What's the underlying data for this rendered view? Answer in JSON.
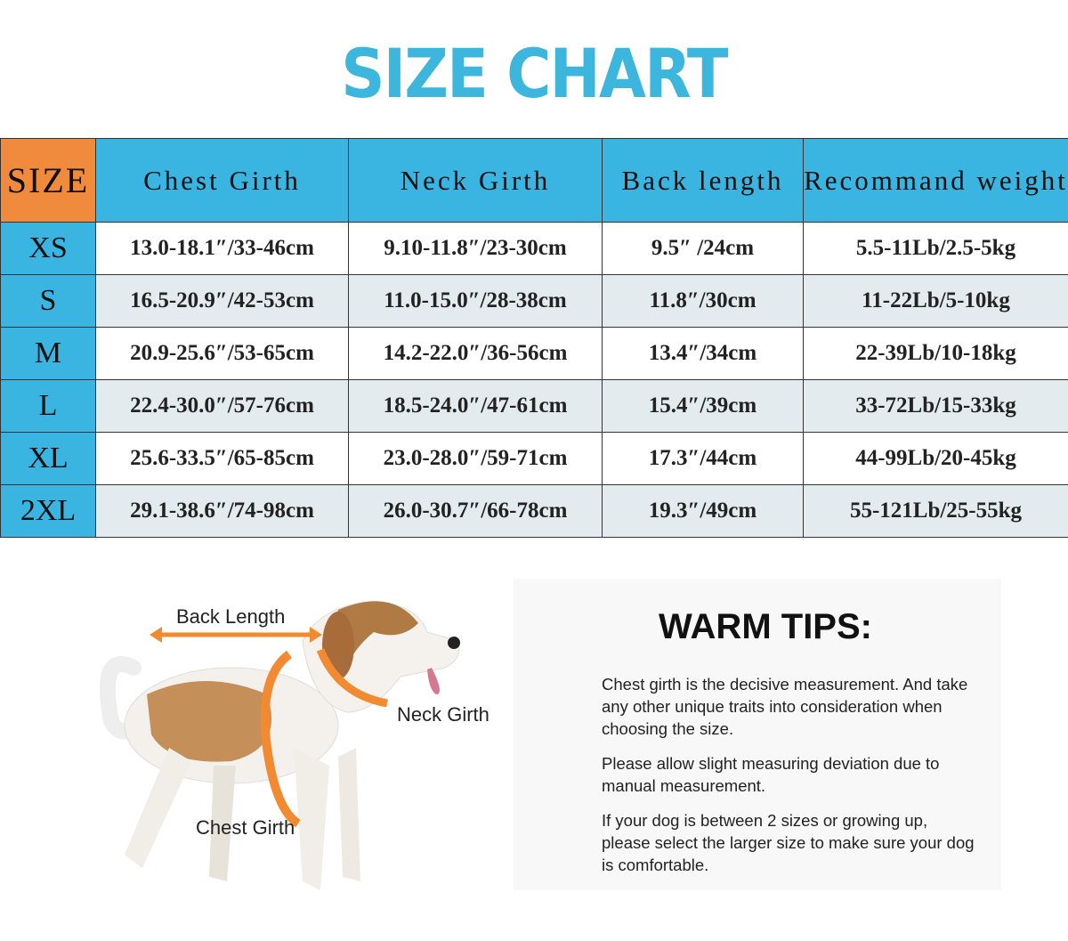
{
  "title": "SIZE CHART",
  "table": {
    "header": [
      "SIZE",
      "Chest Girth",
      "Neck Girth",
      "Back length",
      "Recommand weight"
    ],
    "rows": [
      [
        "XS",
        "13.0-18.1″/33-46cm",
        "9.10-11.8″/23-30cm",
        "9.5″ /24cm",
        "5.5-11Lb/2.5-5kg"
      ],
      [
        "S",
        "16.5-20.9″/42-53cm",
        "11.0-15.0″/28-38cm",
        "11.8″/30cm",
        "11-22Lb/5-10kg"
      ],
      [
        "M",
        "20.9-25.6″/53-65cm",
        "14.2-22.0″/36-56cm",
        "13.4″/34cm",
        "22-39Lb/10-18kg"
      ],
      [
        "L",
        "22.4-30.0″/57-76cm",
        "18.5-24.0″/47-61cm",
        "15.4″/39cm",
        "33-72Lb/15-33kg"
      ],
      [
        "XL",
        "25.6-33.5″/65-85cm",
        "23.0-28.0″/59-71cm",
        "17.3″/44cm",
        "44-99Lb/20-45kg"
      ],
      [
        "2XL",
        "29.1-38.6″/74-98cm",
        "26.0-30.7″/66-78cm",
        "19.3″/49cm",
        "55-121Lb/25-55kg"
      ]
    ]
  },
  "diagram": {
    "back_length": "Back Length",
    "neck_girth": "Neck Girth",
    "chest_girth": "Chest Girth"
  },
  "tips": {
    "title": "WARM TIPS:",
    "paragraphs": [
      "Chest girth is the decisive measurement. And take any other unique traits into consideration when choosing the size.",
      "Please allow slight measuring deviation due to manual measurement.",
      "If your dog is between 2 sizes or growing up, please select the larger size to make sure your dog is comfortable."
    ]
  }
}
